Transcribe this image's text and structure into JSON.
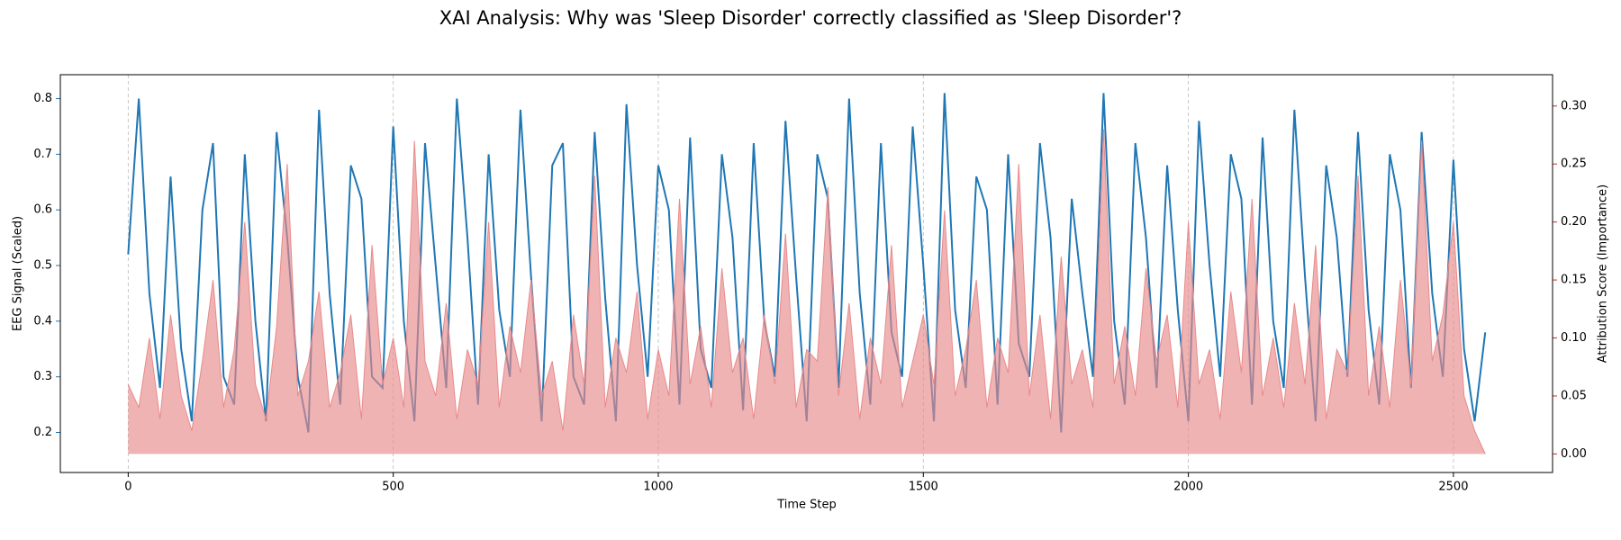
{
  "chart_data": {
    "type": "line",
    "title": "XAI Analysis: Why was 'Sleep Disorder' correctly classified as 'Sleep Disorder'?",
    "x_label": "Time Step",
    "y_label": "EEG Signal (Scaled)",
    "y2_label": "Attribution Score (Importance)",
    "y_label_color": "#1f77b4",
    "y2_label_color": "#d62728",
    "x": [
      0,
      20,
      40,
      60,
      80,
      100,
      120,
      140,
      160,
      180,
      200,
      220,
      240,
      260,
      280,
      300,
      320,
      340,
      360,
      380,
      400,
      420,
      440,
      460,
      480,
      500,
      520,
      540,
      560,
      580,
      600,
      620,
      640,
      660,
      680,
      700,
      720,
      740,
      760,
      780,
      800,
      820,
      840,
      860,
      880,
      900,
      920,
      940,
      960,
      980,
      1000,
      1020,
      1040,
      1060,
      1080,
      1100,
      1120,
      1140,
      1160,
      1180,
      1200,
      1220,
      1240,
      1260,
      1280,
      1300,
      1320,
      1340,
      1360,
      1380,
      1400,
      1420,
      1440,
      1460,
      1480,
      1500,
      1520,
      1540,
      1560,
      1580,
      1600,
      1620,
      1640,
      1660,
      1680,
      1700,
      1720,
      1740,
      1760,
      1780,
      1800,
      1820,
      1840,
      1860,
      1880,
      1900,
      1920,
      1940,
      1960,
      1980,
      2000,
      2020,
      2040,
      2060,
      2080,
      2100,
      2120,
      2140,
      2160,
      2180,
      2200,
      2220,
      2240,
      2260,
      2280,
      2300,
      2320,
      2340,
      2360,
      2380,
      2400,
      2420,
      2440,
      2460,
      2480,
      2500,
      2520,
      2540,
      2560
    ],
    "series": [
      {
        "name": "EEG Signal",
        "color": "#1f77b4",
        "axis": "y",
        "values": [
          0.52,
          0.8,
          0.45,
          0.28,
          0.66,
          0.35,
          0.22,
          0.6,
          0.72,
          0.3,
          0.25,
          0.7,
          0.4,
          0.22,
          0.74,
          0.55,
          0.3,
          0.2,
          0.78,
          0.45,
          0.25,
          0.68,
          0.62,
          0.3,
          0.28,
          0.75,
          0.4,
          0.22,
          0.72,
          0.5,
          0.28,
          0.8,
          0.55,
          0.25,
          0.7,
          0.42,
          0.3,
          0.78,
          0.48,
          0.22,
          0.68,
          0.72,
          0.3,
          0.25,
          0.74,
          0.44,
          0.22,
          0.79,
          0.5,
          0.3,
          0.68,
          0.6,
          0.25,
          0.73,
          0.35,
          0.28,
          0.7,
          0.55,
          0.24,
          0.72,
          0.4,
          0.3,
          0.76,
          0.48,
          0.22,
          0.7,
          0.62,
          0.28,
          0.8,
          0.45,
          0.25,
          0.72,
          0.38,
          0.3,
          0.75,
          0.5,
          0.22,
          0.81,
          0.42,
          0.28,
          0.66,
          0.6,
          0.25,
          0.7,
          0.36,
          0.3,
          0.72,
          0.55,
          0.2,
          0.62,
          0.45,
          0.3,
          0.81,
          0.4,
          0.25,
          0.72,
          0.55,
          0.28,
          0.68,
          0.42,
          0.22,
          0.76,
          0.5,
          0.3,
          0.7,
          0.62,
          0.25,
          0.73,
          0.4,
          0.28,
          0.78,
          0.48,
          0.22,
          0.68,
          0.55,
          0.3,
          0.74,
          0.42,
          0.25,
          0.7,
          0.6,
          0.28,
          0.74,
          0.45,
          0.3,
          0.69,
          0.35,
          0.22,
          0.38
        ]
      },
      {
        "name": "Attribution",
        "color": "#e88a8b",
        "axis": "y2",
        "values": [
          0.06,
          0.04,
          0.1,
          0.03,
          0.12,
          0.05,
          0.02,
          0.08,
          0.15,
          0.04,
          0.09,
          0.2,
          0.06,
          0.03,
          0.11,
          0.25,
          0.05,
          0.08,
          0.14,
          0.04,
          0.07,
          0.12,
          0.03,
          0.18,
          0.06,
          0.1,
          0.04,
          0.27,
          0.08,
          0.05,
          0.13,
          0.03,
          0.09,
          0.06,
          0.2,
          0.04,
          0.11,
          0.07,
          0.15,
          0.05,
          0.08,
          0.02,
          0.12,
          0.06,
          0.24,
          0.04,
          0.1,
          0.07,
          0.14,
          0.03,
          0.09,
          0.05,
          0.22,
          0.06,
          0.11,
          0.04,
          0.16,
          0.07,
          0.1,
          0.03,
          0.12,
          0.06,
          0.19,
          0.04,
          0.09,
          0.08,
          0.23,
          0.05,
          0.13,
          0.03,
          0.1,
          0.06,
          0.18,
          0.04,
          0.08,
          0.12,
          0.06,
          0.21,
          0.05,
          0.09,
          0.15,
          0.04,
          0.1,
          0.07,
          0.25,
          0.05,
          0.12,
          0.03,
          0.17,
          0.06,
          0.09,
          0.04,
          0.28,
          0.06,
          0.11,
          0.05,
          0.16,
          0.08,
          0.12,
          0.04,
          0.2,
          0.06,
          0.09,
          0.03,
          0.14,
          0.07,
          0.22,
          0.05,
          0.1,
          0.04,
          0.13,
          0.06,
          0.18,
          0.03,
          0.09,
          0.07,
          0.24,
          0.05,
          0.11,
          0.04,
          0.15,
          0.06,
          0.27,
          0.08,
          0.12,
          0.2,
          0.05,
          0.02,
          0.0
        ]
      }
    ],
    "xlim": [
      -128,
      2687
    ],
    "xticks": [
      0,
      500,
      1000,
      1500,
      2000,
      2500
    ],
    "ylim": [
      0.128,
      0.843
    ],
    "yticks": [
      0.2,
      0.3,
      0.4,
      0.5,
      0.6,
      0.7,
      0.8
    ],
    "y2lim": [
      -0.016,
      0.327
    ],
    "y2ticks": [
      {
        "value": 0,
        "label": "0.00"
      },
      {
        "value": 0.05,
        "label": "0.05"
      },
      {
        "value": 0.1,
        "label": "0.10"
      },
      {
        "value": 0.15,
        "label": "0.15"
      },
      {
        "value": 0.2,
        "label": "0.20"
      },
      {
        "value": 0.25,
        "label": "0.25"
      },
      {
        "value": 0.3,
        "label": "0.30"
      }
    ],
    "grid": true
  }
}
